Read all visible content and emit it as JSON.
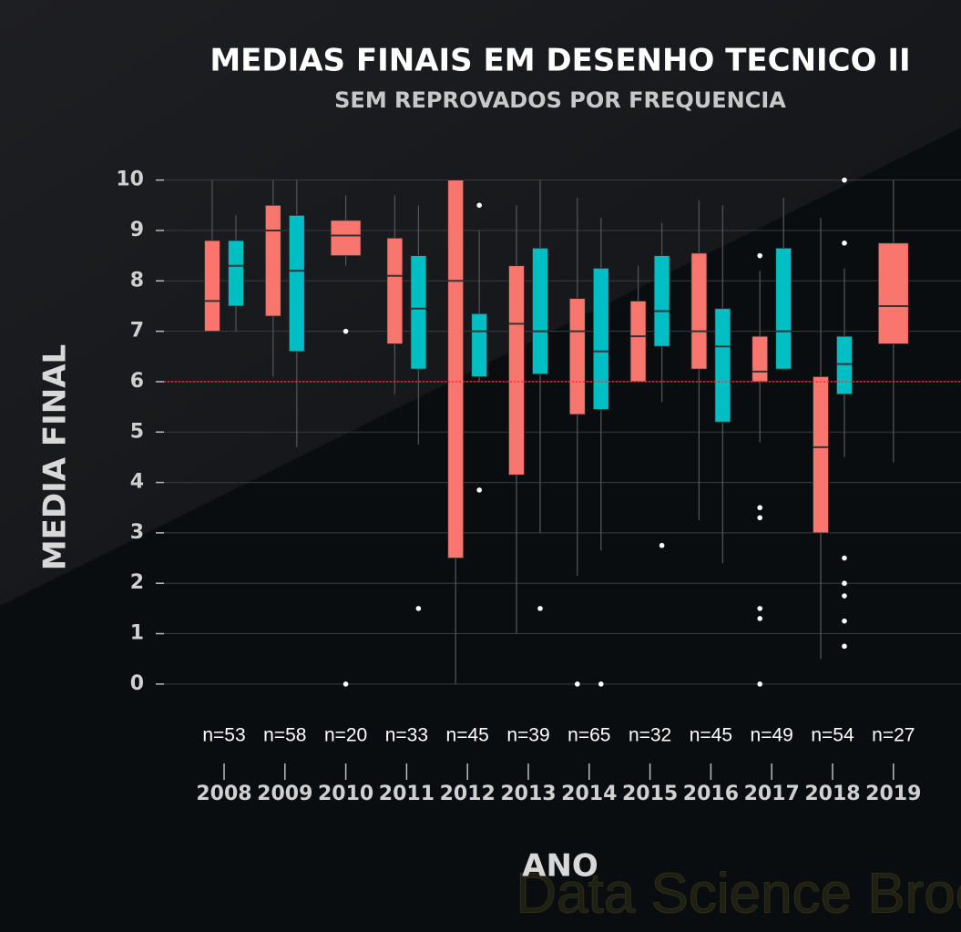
{
  "chart_data": {
    "type": "box",
    "title": "MEDIAS FINAIS EM DESENHO TECNICO II",
    "subtitle": "SEM REPROVADOS POR FREQUENCIA",
    "x_label": "ANO",
    "y_label": "MEDIA FINAL",
    "watermark": "Data Science Broon",
    "categories": [
      "2008",
      "2009",
      "2010",
      "2011",
      "2012",
      "2013",
      "2014",
      "2015",
      "2016",
      "2017",
      "2018",
      "2019"
    ],
    "count_labels": [
      "n=53",
      "n=58",
      "n=20",
      "n=33",
      "n=45",
      "n=39",
      "n=65",
      "n=32",
      "n=45",
      "n=49",
      "n=54",
      "n=27"
    ],
    "ylim": [
      -1.25,
      10.5
    ],
    "yticks": [
      0,
      1,
      2,
      3,
      4,
      5,
      6,
      7,
      8,
      9,
      10
    ],
    "grid": true,
    "reference_line": 6,
    "reference_color": "#ff2a2a",
    "series": [
      {
        "color": "#f8766d",
        "boxes": [
          {
            "low": 7.0,
            "q1": 7.0,
            "median": 7.6,
            "q3": 8.8,
            "high": 10,
            "outliers": []
          },
          {
            "low": 6.1,
            "q1": 7.3,
            "median": 9.0,
            "q3": 9.5,
            "high": 10,
            "outliers": []
          },
          {
            "low": 8.3,
            "q1": 8.5,
            "median": 8.9,
            "q3": 9.2,
            "high": 9.7,
            "outliers": [
              7,
              0
            ]
          },
          {
            "low": 5.75,
            "q1": 6.75,
            "median": 8.1,
            "q3": 8.85,
            "high": 9.7,
            "outliers": []
          },
          {
            "low": 0,
            "q1": 2.5,
            "median": 8.0,
            "q3": 10,
            "high": 10,
            "outliers": []
          },
          {
            "low": 1.0,
            "q1": 4.15,
            "median": 7.15,
            "q3": 8.3,
            "high": 9.5,
            "outliers": []
          },
          {
            "low": 2.15,
            "q1": 5.35,
            "median": 7.0,
            "q3": 7.65,
            "high": 9.65,
            "outliers": [
              0
            ]
          },
          {
            "low": 6.0,
            "q1": 6.0,
            "median": 6.9,
            "q3": 7.6,
            "high": 8.3,
            "outliers": []
          },
          {
            "low": 3.25,
            "q1": 6.25,
            "median": 7.0,
            "q3": 8.55,
            "high": 9.6,
            "outliers": []
          },
          {
            "low": 4.8,
            "q1": 6.0,
            "median": 6.2,
            "q3": 6.9,
            "high": 8.2,
            "outliers": [
              8.5,
              3.5,
              3.3,
              1.5,
              1.3,
              0
            ]
          },
          {
            "low": 0.5,
            "q1": 3.0,
            "median": 4.7,
            "q3": 6.1,
            "high": 9.25,
            "outliers": []
          },
          {
            "low": 4.4,
            "q1": 6.75,
            "median": 7.5,
            "q3": 8.75,
            "high": 10,
            "outliers": []
          }
        ]
      },
      {
        "color": "#00bfc4",
        "boxes": [
          {
            "low": 7.0,
            "q1": 7.5,
            "median": 8.3,
            "q3": 8.8,
            "high": 9.3,
            "outliers": []
          },
          {
            "low": 4.7,
            "q1": 6.6,
            "median": 8.2,
            "q3": 9.3,
            "high": 10,
            "outliers": []
          },
          null,
          {
            "low": 4.75,
            "q1": 6.25,
            "median": 7.45,
            "q3": 8.5,
            "high": 9.5,
            "outliers": [
              1.5
            ]
          },
          {
            "low": 6.0,
            "q1": 6.1,
            "median": 7.0,
            "q3": 7.35,
            "high": 9.0,
            "outliers": [
              9.5,
              3.85
            ]
          },
          {
            "low": 3.0,
            "q1": 6.15,
            "median": 7.0,
            "q3": 8.65,
            "high": 10,
            "outliers": [
              1.5
            ]
          },
          {
            "low": 2.65,
            "q1": 5.45,
            "median": 6.6,
            "q3": 8.25,
            "high": 9.25,
            "outliers": [
              0
            ]
          },
          {
            "low": 5.6,
            "q1": 6.7,
            "median": 7.4,
            "q3": 8.5,
            "high": 9.15,
            "outliers": [
              2.75
            ]
          },
          {
            "low": 2.4,
            "q1": 5.2,
            "median": 6.7,
            "q3": 7.45,
            "high": 9.5,
            "outliers": []
          },
          {
            "low": 6.25,
            "q1": 6.25,
            "median": 7.0,
            "q3": 8.65,
            "high": 9.65,
            "outliers": []
          },
          {
            "low": 4.5,
            "q1": 5.75,
            "median": 6.35,
            "q3": 6.9,
            "high": 8.25,
            "outliers": [
              10,
              8.75,
              2.5,
              2.0,
              1.75,
              1.25,
              0.75
            ]
          },
          null
        ]
      }
    ]
  }
}
